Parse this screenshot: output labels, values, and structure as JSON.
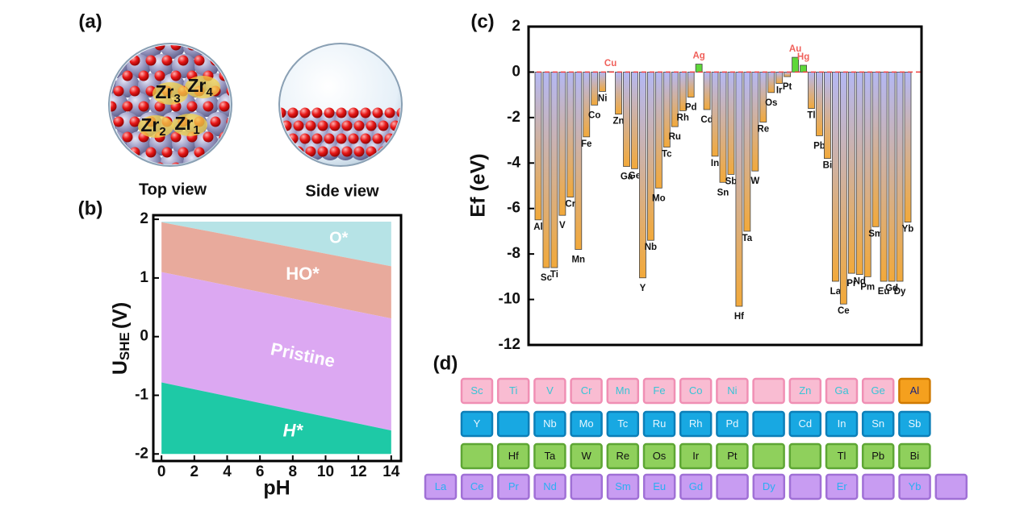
{
  "figure": {
    "panel_labels": [
      "(a)",
      "(b)",
      "(c)",
      "(d)"
    ]
  },
  "structure": {
    "views": [
      "Top view",
      "Side view"
    ],
    "atom_labels": [
      {
        "symbol": "Zr",
        "index": "3"
      },
      {
        "symbol": "Zr",
        "index": "4"
      },
      {
        "symbol": "Zr",
        "index": "2"
      },
      {
        "symbol": "Zr",
        "index": "1"
      }
    ]
  },
  "chart_data": [
    {
      "type": "phase",
      "x_label": "pH",
      "y_label": {
        "main": "U",
        "sub": "SHE",
        "unit": "(V)"
      },
      "x": [
        0,
        14
      ],
      "series": [
        {
          "name": "O*",
          "color": "#b6e3e6",
          "values": [
            1.96,
            1.96
          ]
        },
        {
          "name": "HO*",
          "color": "#e8aa9c",
          "values": [
            1.95,
            1.2
          ]
        },
        {
          "name": "Pristine",
          "color": "#dca8f2",
          "values": [
            1.1,
            0.31
          ]
        },
        {
          "name": "H*",
          "color": "#1ec9a6",
          "values": [
            -0.78,
            -1.6
          ]
        }
      ],
      "region_bottom": -2,
      "xlim": [
        -0.5,
        14.6
      ],
      "ylim": [
        -2.12,
        2.07
      ],
      "xticks": [
        0,
        2,
        4,
        6,
        8,
        10,
        12,
        14
      ],
      "yticks": [
        -2,
        -1,
        0,
        1,
        2
      ]
    },
    {
      "type": "bar",
      "y_label": "Ef (eV)",
      "categories": [
        "Al",
        "Sc",
        "Ti",
        "V",
        "Cr",
        "Mn",
        "Fe",
        "Co",
        "Ni",
        "Cu",
        "Zn",
        "Ga",
        "Ge",
        "Y",
        "Nb",
        "Mo",
        "Tc",
        "Ru",
        "Rh",
        "Pd",
        "Ag",
        "Cd",
        "In",
        "Sn",
        "Sb",
        "Hf",
        "Ta",
        "W",
        "Re",
        "Os",
        "Ir",
        "Pt",
        "Au",
        "Hg",
        "Tl",
        "Pb",
        "Bi",
        "La",
        "Ce",
        "Pr",
        "Nd",
        "Pm",
        "Sm",
        "Eu",
        "Gd",
        "Dy",
        "Yb"
      ],
      "values": [
        -6.5,
        -8.6,
        -8.6,
        -6.3,
        -5.5,
        -7.8,
        -2.85,
        -1.45,
        -0.85,
        0.02,
        -1.85,
        -4.15,
        -4.25,
        -9.05,
        -7.4,
        -5.1,
        -3.3,
        -2.4,
        -1.7,
        -1.1,
        0.35,
        -1.65,
        -3.7,
        -4.85,
        -4.5,
        -10.3,
        -7.0,
        -4.35,
        -2.2,
        -0.9,
        -0.5,
        -0.2,
        0.65,
        0.3,
        -1.6,
        -2.8,
        -3.8,
        -9.2,
        -10.2,
        -8.85,
        -8.9,
        -9.0,
        -6.8,
        -9.2,
        -9.2,
        -9.2,
        -6.6
      ],
      "negative_colors": [
        "#b4b8f4",
        "#f2a93a"
      ],
      "positive_color": "#5ed83a",
      "positive_label_color": "#f0605a",
      "zero_line_color": "#f04040",
      "ylim": [
        -12,
        2
      ],
      "yticks": [
        2,
        0,
        -2,
        -4,
        -6,
        -8,
        -10,
        -12
      ]
    }
  ],
  "table": {
    "rows": [
      {
        "fill": "#f9bcd2",
        "stroke": "#f08fb4",
        "text_color": "#38c4d6",
        "cells": [
          "Sc",
          "Ti",
          "V",
          "Cr",
          "Mn",
          "Fe",
          "Co",
          "Ni",
          null,
          "Zn",
          "Ga",
          "Ge",
          "Al"
        ]
      },
      {
        "fill": "#18a8e2",
        "stroke": "#0c7fb8",
        "text_color": "#e6f6ff",
        "cells": [
          "Y",
          null,
          "Nb",
          "Mo",
          "Tc",
          "Ru",
          "Rh",
          "Pd",
          null,
          "Cd",
          "In",
          "Sn",
          "Sb"
        ]
      },
      {
        "fill": "#8fd05c",
        "stroke": "#5ea634",
        "text_color": "#111111",
        "cells": [
          null,
          "Hf",
          "Ta",
          "W",
          "Re",
          "Os",
          "Ir",
          "Pt",
          null,
          null,
          "Tl",
          "Pb",
          "Bi"
        ]
      },
      {
        "fill": "#c89cf2",
        "stroke": "#a070d6",
        "text_color": "#2aaef2",
        "cells": [
          "La",
          "Ce",
          "Pr",
          "Nd",
          null,
          "Sm",
          "Eu",
          "Gd",
          null,
          "Dy",
          null,
          "Er",
          null,
          "Yb",
          null
        ]
      }
    ],
    "highlight": {
      "row": 0,
      "col": 12,
      "fill": "#f5a01e",
      "stroke": "#d07a00",
      "text_color": "#1a237e"
    }
  }
}
